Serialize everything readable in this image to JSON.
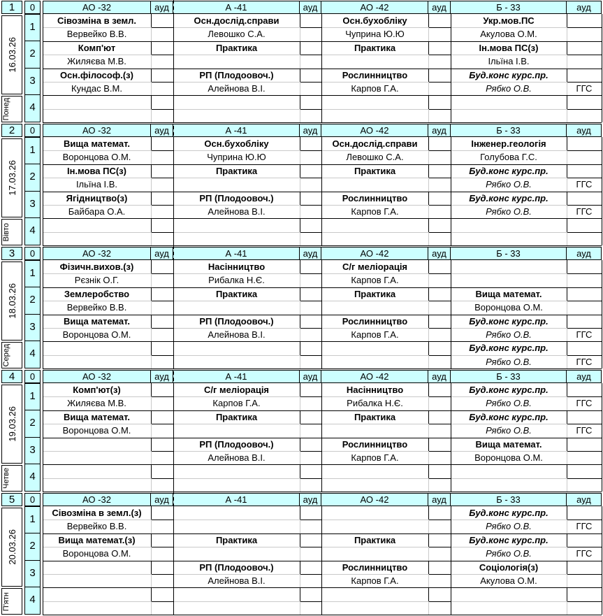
{
  "colors": {
    "header_bg": "#ccffff",
    "border": "#000000",
    "gridline": "#c9c9c9",
    "page_break": "#000000"
  },
  "columns": {
    "corner_label": "0",
    "aud_label": "ауд",
    "groups": [
      "АО -32",
      "А -41",
      "АО -42",
      "Б - 33"
    ]
  },
  "days": [
    {
      "number": "1",
      "date": "16.03.26",
      "weekday": "Понед",
      "lessons": [
        {
          "n": "1",
          "cells": [
            {
              "subject": "Сівозміна в земл.",
              "teacher": "Вервейко В.В."
            },
            {
              "subject": "Осн.дослід.справи",
              "teacher": "Левошко С.А."
            },
            {
              "subject": "Осн.бухобліку",
              "teacher": "Чуприна Ю.Ю"
            },
            {
              "subject": "Укр.мов.ПС",
              "teacher": "Акулова О.М."
            }
          ]
        },
        {
          "n": "2",
          "cells": [
            {
              "subject": "Комп'ют",
              "teacher": "Жиляєва М.В."
            },
            {
              "subject": "Практика",
              "teacher": ""
            },
            {
              "subject": "Практика",
              "teacher": ""
            },
            {
              "subject": "Ін.мова ПС(з)",
              "teacher": "Ільїна І.В."
            }
          ]
        },
        {
          "n": "3",
          "cells": [
            {
              "subject": "Осн.філософ.(з)",
              "teacher": "Кундас В.М."
            },
            {
              "subject": "РП (Плодоовоч.)",
              "teacher": "Алейнова В.І."
            },
            {
              "subject": "Рослинництво",
              "teacher": "Карпов Г.А."
            },
            {
              "subject": "Буд.конс курс.пр.",
              "teacher": "Рябко О.В.",
              "aud": "ГГС",
              "italic": true
            }
          ]
        },
        {
          "n": "4",
          "cells": [
            {},
            {},
            {},
            {}
          ]
        }
      ]
    },
    {
      "number": "2",
      "date": "17.03.26",
      "weekday": "Вівто",
      "lessons": [
        {
          "n": "1",
          "cells": [
            {
              "subject": "Вища математ.",
              "teacher": "Воронцова О.М."
            },
            {
              "subject": "Осн.бухобліку",
              "teacher": "Чуприна Ю.Ю"
            },
            {
              "subject": "Осн.дослід.справи",
              "teacher": "Левошко С.А."
            },
            {
              "subject": "Інженер.геологія",
              "teacher": "Голубова Г.С."
            }
          ]
        },
        {
          "n": "2",
          "cells": [
            {
              "subject": "Ін.мова ПС(з)",
              "teacher": "Ільїна І.В."
            },
            {
              "subject": "Практика",
              "teacher": ""
            },
            {
              "subject": "Практика",
              "teacher": ""
            },
            {
              "subject": "Буд.конс курс.пр.",
              "teacher": "Рябко О.В.",
              "aud": "ГГС",
              "italic": true
            }
          ]
        },
        {
          "n": "3",
          "cells": [
            {
              "subject": "Ягідництво(з)",
              "teacher": "Байбара О.А."
            },
            {
              "subject": "РП (Плодоовоч.)",
              "teacher": "Алейнова В.І."
            },
            {
              "subject": "Рослинництво",
              "teacher": "Карпов Г.А."
            },
            {
              "subject": "Буд.конс курс.пр.",
              "teacher": "Рябко О.В.",
              "aud": "ГГС",
              "italic": true
            }
          ]
        },
        {
          "n": "4",
          "cells": [
            {},
            {},
            {},
            {}
          ]
        }
      ]
    },
    {
      "number": "3",
      "date": "18.03.26",
      "weekday": "Серед",
      "lessons": [
        {
          "n": "1",
          "cells": [
            {
              "subject": "Фізичн.вихов.(з)",
              "teacher": "Рєзнік О.Г."
            },
            {
              "subject": "Насінництво",
              "teacher": "Рибалка Н.Є."
            },
            {
              "subject": "С/г меліорація",
              "teacher": "Карпов Г.А."
            },
            {}
          ]
        },
        {
          "n": "2",
          "cells": [
            {
              "subject": "Землеробство",
              "teacher": "Вервейко В.В."
            },
            {
              "subject": "Практика",
              "teacher": ""
            },
            {
              "subject": "Практика",
              "teacher": ""
            },
            {
              "subject": "Вища математ.",
              "teacher": "Воронцова О.М."
            }
          ]
        },
        {
          "n": "3",
          "cells": [
            {
              "subject": "Вища математ.",
              "teacher": "Воронцова О.М."
            },
            {
              "subject": "РП (Плодоовоч.)",
              "teacher": "Алейнова В.І."
            },
            {
              "subject": "Рослинництво",
              "teacher": "Карпов Г.А."
            },
            {
              "subject": "Буд.конс курс.пр.",
              "teacher": "Рябко О.В.",
              "aud": "ГГС",
              "italic": true
            }
          ]
        },
        {
          "n": "4",
          "cells": [
            {},
            {},
            {},
            {
              "subject": "Буд.конс курс.пр.",
              "teacher": "Рябко О.В.",
              "aud": "ГГС",
              "italic": true
            }
          ]
        }
      ]
    },
    {
      "number": "4",
      "date": "19.03.26",
      "weekday": "Четве",
      "lessons": [
        {
          "n": "1",
          "cells": [
            {
              "subject": "Комп'ют(з)",
              "teacher": "Жиляєва М.В."
            },
            {
              "subject": "С/г меліорація",
              "teacher": "Карпов Г.А."
            },
            {
              "subject": "Насінництво",
              "teacher": "Рибалка Н.Є."
            },
            {
              "subject": "Буд.конс курс.пр.",
              "teacher": "Рябко О.В.",
              "aud": "ГГС",
              "italic": true
            }
          ]
        },
        {
          "n": "2",
          "cells": [
            {
              "subject": "Вища математ.",
              "teacher": "Воронцова О.М."
            },
            {
              "subject": "Практика",
              "teacher": ""
            },
            {
              "subject": "Практика",
              "teacher": ""
            },
            {
              "subject": "Буд.конс курс.пр.",
              "teacher": "Рябко О.В.",
              "aud": "ГГС",
              "italic": true
            }
          ]
        },
        {
          "n": "3",
          "cells": [
            {},
            {
              "subject": "РП (Плодоовоч.)",
              "teacher": "Алейнова В.І."
            },
            {
              "subject": "Рослинництво",
              "teacher": "Карпов Г.А."
            },
            {
              "subject": "Вища математ.",
              "teacher": "Воронцова О.М."
            }
          ]
        },
        {
          "n": "4",
          "cells": [
            {},
            {},
            {},
            {}
          ]
        }
      ]
    },
    {
      "number": "5",
      "date": "20.03.26",
      "weekday": "П'ятн",
      "lessons": [
        {
          "n": "1",
          "cells": [
            {
              "subject": "Сівозміна в земл.(з)",
              "teacher": "Вервейко В.В."
            },
            {},
            {},
            {
              "subject": "Буд.конс курс.пр.",
              "teacher": "Рябко О.В.",
              "aud": "ГГС",
              "italic": true
            }
          ]
        },
        {
          "n": "2",
          "cells": [
            {
              "subject": "Вища математ.(з)",
              "teacher": "Воронцова О.М."
            },
            {
              "subject": "Практика",
              "teacher": ""
            },
            {
              "subject": "Практика",
              "teacher": ""
            },
            {
              "subject": "Буд.конс курс.пр.",
              "teacher": "Рябко О.В.",
              "aud": "ГГС",
              "italic": true
            }
          ]
        },
        {
          "n": "3",
          "cells": [
            {},
            {
              "subject": "РП (Плодоовоч.)",
              "teacher": "Алейнова В.І."
            },
            {
              "subject": "Рослинництво",
              "teacher": "Карпов Г.А."
            },
            {
              "subject": "Соціологія(з)",
              "teacher": "Акулова О.М."
            }
          ]
        },
        {
          "n": "4",
          "cells": [
            {},
            {},
            {},
            {}
          ]
        }
      ]
    }
  ]
}
